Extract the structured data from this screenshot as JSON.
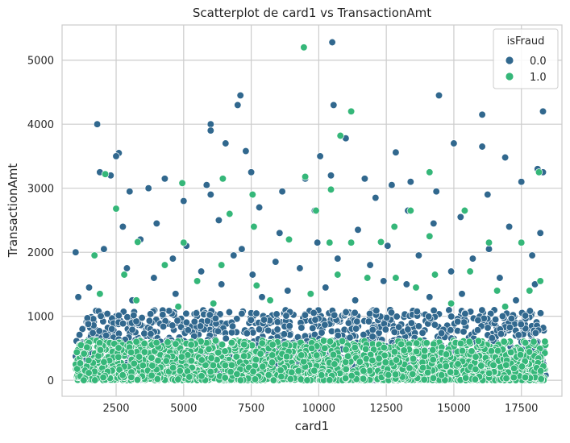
{
  "chart_data": {
    "type": "scatter",
    "title": "Scatterplot de card1 vs TransactionAmt",
    "xlabel": "card1",
    "ylabel": "TransactionAmt",
    "xlim": [
      500,
      19000
    ],
    "ylim": [
      -250,
      5550
    ],
    "xticks": [
      2500,
      5000,
      7500,
      10000,
      12500,
      15000,
      17500
    ],
    "yticks": [
      0,
      1000,
      2000,
      3000,
      4000,
      5000
    ],
    "grid": true,
    "legend": {
      "title": "isFraud",
      "placement": "top-right"
    },
    "series": [
      {
        "name": "0.0",
        "color": "#31688e",
        "x_range": [
          1000,
          18400
        ],
        "dense_y_max": 1100,
        "points": [
          [
            10500,
            5280
          ],
          [
            14450,
            4450
          ],
          [
            7100,
            4450
          ],
          [
            7000,
            4300
          ],
          [
            10550,
            4300
          ],
          [
            6000,
            4000
          ],
          [
            1800,
            4000
          ],
          [
            16050,
            3650
          ],
          [
            6000,
            3900
          ],
          [
            11000,
            3780
          ],
          [
            16050,
            4150
          ],
          [
            18300,
            4200
          ],
          [
            15000,
            3700
          ],
          [
            12850,
            3560
          ],
          [
            2600,
            3550
          ],
          [
            2500,
            3500
          ],
          [
            7300,
            3580
          ],
          [
            6550,
            3700
          ],
          [
            10050,
            3500
          ],
          [
            16900,
            3480
          ],
          [
            1900,
            3250
          ],
          [
            2300,
            3200
          ],
          [
            4300,
            3150
          ],
          [
            7500,
            3250
          ],
          [
            9500,
            3150
          ],
          [
            10450,
            3200
          ],
          [
            11700,
            3150
          ],
          [
            12700,
            3050
          ],
          [
            13400,
            3100
          ],
          [
            17500,
            3100
          ],
          [
            18100,
            3300
          ],
          [
            18300,
            3250
          ],
          [
            3000,
            2950
          ],
          [
            3700,
            3000
          ],
          [
            5850,
            3050
          ],
          [
            8650,
            2950
          ],
          [
            12100,
            2850
          ],
          [
            14350,
            2950
          ],
          [
            16250,
            2900
          ],
          [
            5000,
            2800
          ],
          [
            6000,
            2900
          ],
          [
            7800,
            2700
          ],
          [
            9850,
            2650
          ],
          [
            13300,
            2650
          ],
          [
            15250,
            2550
          ],
          [
            2750,
            2400
          ],
          [
            4000,
            2450
          ],
          [
            6300,
            2500
          ],
          [
            8550,
            2300
          ],
          [
            11450,
            2350
          ],
          [
            14250,
            2450
          ],
          [
            17050,
            2400
          ],
          [
            18200,
            2300
          ],
          [
            3400,
            2200
          ],
          [
            5100,
            2100
          ],
          [
            7150,
            2050
          ],
          [
            9950,
            2150
          ],
          [
            12550,
            2100
          ],
          [
            16300,
            2050
          ],
          [
            1000,
            2000
          ],
          [
            2050,
            2050
          ],
          [
            4600,
            1900
          ],
          [
            6850,
            1950
          ],
          [
            8400,
            1850
          ],
          [
            10700,
            1900
          ],
          [
            13700,
            1950
          ],
          [
            15700,
            1900
          ],
          [
            17900,
            1950
          ],
          [
            2900,
            1750
          ],
          [
            5650,
            1700
          ],
          [
            9300,
            1750
          ],
          [
            11900,
            1800
          ],
          [
            14900,
            1700
          ],
          [
            3900,
            1600
          ],
          [
            7550,
            1650
          ],
          [
            12400,
            1550
          ],
          [
            16700,
            1600
          ],
          [
            1500,
            1450
          ],
          [
            6400,
            1500
          ],
          [
            10250,
            1450
          ],
          [
            13250,
            1500
          ],
          [
            18000,
            1500
          ],
          [
            4700,
            1350
          ],
          [
            8850,
            1400
          ],
          [
            15300,
            1350
          ],
          [
            1100,
            1300
          ],
          [
            3100,
            1250
          ],
          [
            7900,
            1300
          ],
          [
            11350,
            1250
          ],
          [
            14100,
            1300
          ],
          [
            17300,
            1250
          ]
        ]
      },
      {
        "name": "1.0",
        "color": "#35b779",
        "x_range": [
          1000,
          18400
        ],
        "dense_y_max": 620,
        "points": [
          [
            9450,
            5200
          ],
          [
            11200,
            4200
          ],
          [
            10800,
            3820
          ],
          [
            18150,
            3250
          ],
          [
            14100,
            3250
          ],
          [
            9500,
            3180
          ],
          [
            2100,
            3220
          ],
          [
            6450,
            3150
          ],
          [
            4950,
            3080
          ],
          [
            10450,
            2980
          ],
          [
            7550,
            2900
          ],
          [
            6700,
            2600
          ],
          [
            2500,
            2680
          ],
          [
            9900,
            2650
          ],
          [
            14100,
            2250
          ],
          [
            13400,
            2650
          ],
          [
            12800,
            2400
          ],
          [
            7600,
            2400
          ],
          [
            3300,
            2160
          ],
          [
            5000,
            2150
          ],
          [
            10400,
            2150
          ],
          [
            11200,
            2150
          ],
          [
            12300,
            2160
          ],
          [
            15400,
            2650
          ],
          [
            16300,
            2150
          ],
          [
            17500,
            2150
          ],
          [
            1700,
            1950
          ],
          [
            4300,
            1800
          ],
          [
            6400,
            1800
          ],
          [
            8900,
            2200
          ],
          [
            16600,
            1400
          ],
          [
            18200,
            1550
          ],
          [
            17800,
            1400
          ],
          [
            3250,
            1250
          ],
          [
            7700,
            1480
          ],
          [
            12850,
            1600
          ],
          [
            14300,
            1650
          ],
          [
            2800,
            1650
          ],
          [
            5500,
            1550
          ],
          [
            10700,
            1650
          ],
          [
            13600,
            1450
          ],
          [
            9700,
            1350
          ],
          [
            15600,
            1700
          ],
          [
            11800,
            1600
          ],
          [
            1900,
            1350
          ],
          [
            8200,
            1250
          ],
          [
            6100,
            1200
          ],
          [
            4800,
            1150
          ],
          [
            14900,
            1200
          ],
          [
            16900,
            1150
          ]
        ]
      }
    ]
  }
}
